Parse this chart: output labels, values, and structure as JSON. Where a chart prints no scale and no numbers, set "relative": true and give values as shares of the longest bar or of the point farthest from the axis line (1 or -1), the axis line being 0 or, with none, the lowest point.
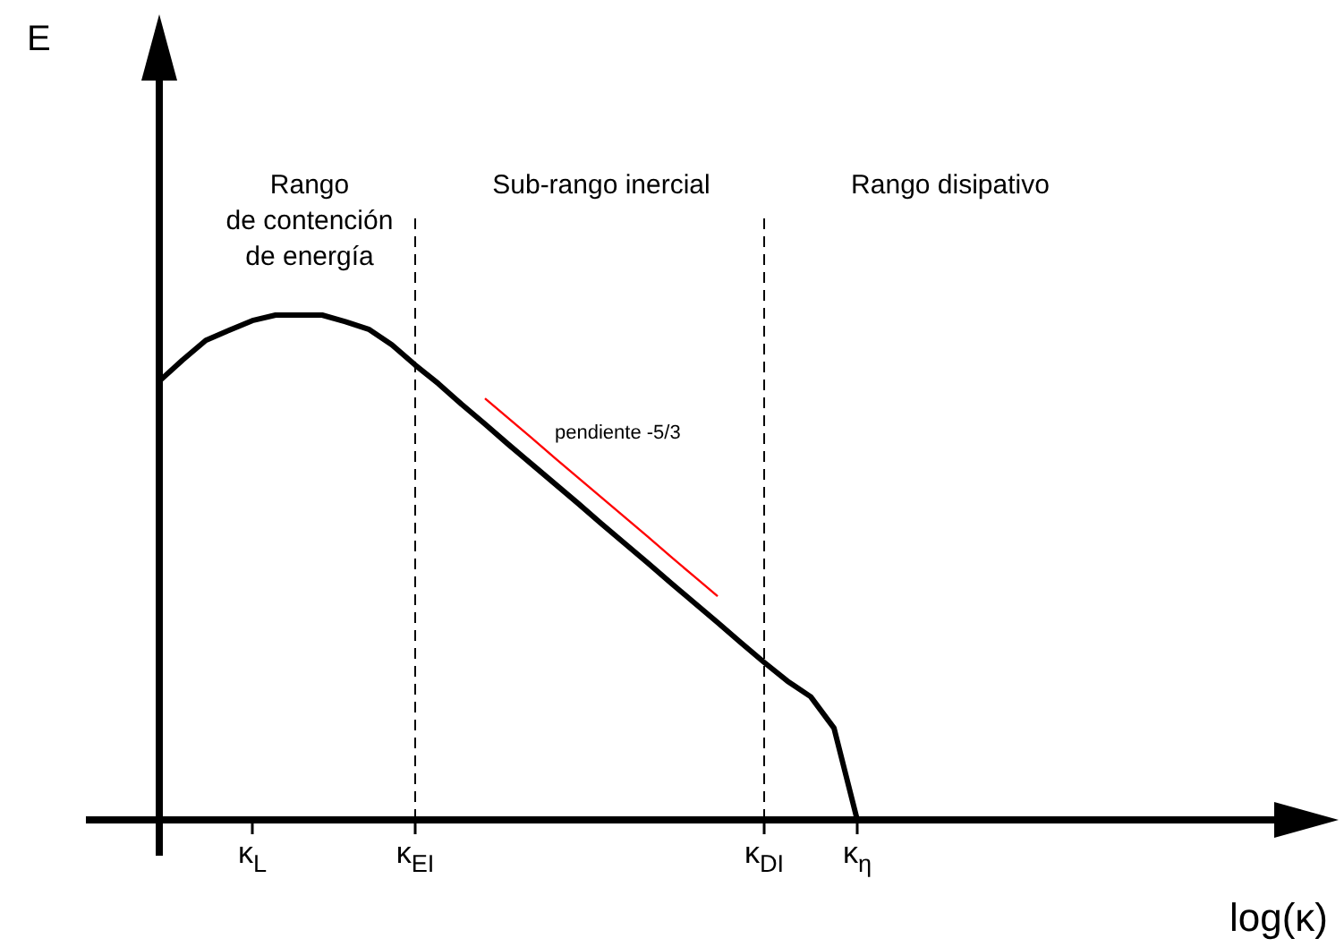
{
  "chart_data": {
    "type": "line",
    "relative": true,
    "xlabel": "log(κ)",
    "categories": [
      null,
      null,
      null,
      null,
      "κ$_{L}$",
      null,
      null,
      null,
      null,
      null,
      null,
      "κ$_{EI}$",
      null,
      null,
      null,
      null,
      null,
      null,
      null,
      null,
      null,
      null,
      null,
      null,
      null,
      null,
      "κ$_{DI}$",
      null,
      null,
      null,
      "κ$_{η}$",
      null,
      null,
      null,
      null,
      null,
      null,
      null,
      null,
      null,
      null,
      null,
      null,
      null,
      null,
      null,
      null,
      null,
      null,
      null,
      null
    ],
    "series": [
      {
        "color": "#000000",
        "values": [
          0.869,
          0.911,
          0.95,
          0.97,
          0.989,
          1,
          1,
          1,
          0.987,
          0.972,
          0.941,
          0.901,
          0.864,
          0.823,
          0.784,
          0.744,
          0.705,
          0.666,
          0.627,
          0.587,
          0.548,
          0.509,
          0.469,
          0.43,
          0.391,
          0.351,
          0.312,
          0.275,
          0.244,
          0.182,
          0,
          null,
          null,
          null,
          null,
          null,
          null,
          null,
          null,
          null,
          null,
          null,
          null,
          null,
          null,
          null,
          null,
          null,
          null,
          null,
          null
        ]
      },
      {
        "type": "line",
        "color": "#ff0000",
        "values": [
          null,
          null,
          null,
          null,
          null,
          null,
          null,
          null,
          null,
          null,
          null,
          null,
          null,
          null,
          0.835,
          0.796,
          0.757,
          0.717,
          0.678,
          0.639,
          0.6,
          0.561,
          0.521,
          0.482,
          0.443,
          null,
          null,
          null,
          null,
          null,
          null,
          null,
          null,
          null,
          null,
          null,
          null,
          null,
          null,
          null,
          null,
          null,
          null,
          null,
          null,
          null,
          null,
          null,
          null,
          null,
          null
        ]
      }
    ],
    "ref_lines": [
      {
        "axis": "x",
        "value": "κ$_{EI}$",
        "line_style": "dashed"
      },
      {
        "axis": "x",
        "value": "κ$_{DI}$",
        "line_style": "dashed"
      }
    ],
    "annotations": [
      "Rango\nde contención\nde energía",
      "Sub-rango inercial",
      "Rango disipativo",
      "pendiente -5/3",
      "E"
    ]
  }
}
